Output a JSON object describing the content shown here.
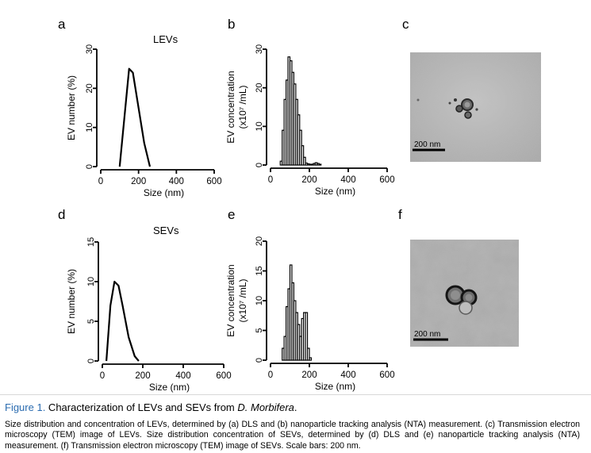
{
  "panels": {
    "a": {
      "letter": "a",
      "title": "LEVs"
    },
    "b": {
      "letter": "b"
    },
    "c": {
      "letter": "c",
      "scalebar": "200 nm"
    },
    "d": {
      "letter": "d",
      "title": "SEVs"
    },
    "e": {
      "letter": "e"
    },
    "f": {
      "letter": "f",
      "scalebar": "200 nm"
    }
  },
  "chart_data": [
    {
      "id": "a",
      "type": "line",
      "title": "LEVs",
      "xlabel": "Size (nm)",
      "ylabel": "EV number (%)",
      "xlim": [
        0,
        600
      ],
      "ylim": [
        0,
        30
      ],
      "xticks": [
        0,
        200,
        400,
        600
      ],
      "yticks": [
        0,
        10,
        20,
        30
      ],
      "series": [
        {
          "x": [
            100,
            150,
            170,
            230,
            260
          ],
          "y": [
            0,
            25,
            24,
            6,
            0
          ]
        }
      ]
    },
    {
      "id": "b",
      "type": "bar",
      "xlabel": "Size (nm)",
      "ylabel": "EV concentration (x10⁷ /mL)",
      "ylabel_line1": "EV concentration",
      "ylabel_line2": "(x10⁷ /mL)",
      "xlim": [
        0,
        600
      ],
      "ylim": [
        0,
        30
      ],
      "xticks": [
        0,
        200,
        400,
        600
      ],
      "yticks": [
        0,
        10,
        20,
        30
      ],
      "binwidth": 10,
      "x": [
        55,
        65,
        75,
        85,
        95,
        105,
        115,
        125,
        135,
        145,
        155,
        165,
        175,
        185,
        195,
        205,
        215,
        225,
        235,
        245,
        255
      ],
      "values": [
        1,
        9,
        17,
        22,
        28,
        27,
        24,
        21,
        17,
        13,
        9,
        5,
        2,
        0.5,
        0.3,
        0.2,
        0.2,
        0.4,
        0.6,
        0.4,
        0.2
      ]
    },
    {
      "id": "d",
      "type": "line",
      "title": "SEVs",
      "xlabel": "Size (nm)",
      "ylabel": "EV number (%)",
      "xlim": [
        0,
        600
      ],
      "ylim": [
        0,
        15
      ],
      "xticks": [
        0,
        200,
        400,
        600
      ],
      "yticks": [
        0,
        5,
        10,
        15
      ],
      "series": [
        {
          "x": [
            20,
            40,
            60,
            80,
            100,
            130,
            160,
            180
          ],
          "y": [
            0,
            7,
            10,
            9.5,
            7,
            3,
            0.6,
            0
          ]
        }
      ]
    },
    {
      "id": "e",
      "type": "bar",
      "xlabel": "Size (nm)",
      "ylabel": "EV concentration (x10⁷ /mL)",
      "ylabel_line1": "EV concentration",
      "ylabel_line2": "(x10⁷ /mL)",
      "xlim": [
        0,
        600
      ],
      "ylim": [
        0,
        20
      ],
      "xticks": [
        0,
        200,
        400,
        600
      ],
      "yticks": [
        0,
        5,
        10,
        15,
        20
      ],
      "binwidth": 10,
      "x": [
        65,
        75,
        85,
        95,
        105,
        115,
        125,
        135,
        145,
        155,
        165,
        175,
        185,
        195,
        205
      ],
      "values": [
        2,
        4,
        9,
        12,
        16,
        13,
        10,
        8,
        6,
        4,
        7,
        8,
        8,
        2,
        0.4
      ]
    }
  ],
  "caption": {
    "figure_label": "Figure 1.",
    "title_text": " Characterization of LEVs and SEVs from ",
    "title_species": "D. Morbifera",
    "title_end": ".",
    "body": "Size distribution and concentration of LEVs, determined by (a) DLS and (b) nanoparticle tracking analysis (NTA) measurement. (c) Transmission electron microscopy (TEM) image of LEVs. Size distribution concentration of SEVs, determined by (d) DLS and (e) nanoparticle tracking analysis (NTA) measurement. (f) Transmission electron microscopy (TEM) image of SEVs. Scale bars: 200 nm."
  }
}
